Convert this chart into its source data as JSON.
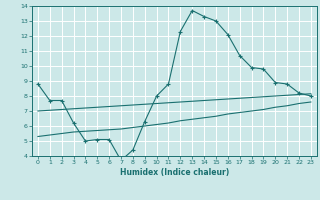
{
  "title": "",
  "xlabel": "Humidex (Indice chaleur)",
  "ylabel": "",
  "bg_color": "#cce8e8",
  "grid_color": "#ffffff",
  "line_color": "#1a7070",
  "xlim": [
    -0.5,
    23.5
  ],
  "ylim": [
    4,
    14
  ],
  "xticks": [
    0,
    1,
    2,
    3,
    4,
    5,
    6,
    7,
    8,
    9,
    10,
    11,
    12,
    13,
    14,
    15,
    16,
    17,
    18,
    19,
    20,
    21,
    22,
    23
  ],
  "yticks": [
    4,
    5,
    6,
    7,
    8,
    9,
    10,
    11,
    12,
    13,
    14
  ],
  "series1_x": [
    0,
    1,
    2,
    3,
    4,
    5,
    6,
    7,
    8,
    9,
    10,
    11,
    12,
    13,
    14,
    15,
    16,
    17,
    18,
    19,
    20,
    21,
    22,
    23
  ],
  "series1_y": [
    8.8,
    7.7,
    7.7,
    6.2,
    5.0,
    5.1,
    5.1,
    3.7,
    4.4,
    6.3,
    8.0,
    8.8,
    12.3,
    13.7,
    13.3,
    13.0,
    12.1,
    10.7,
    9.9,
    9.8,
    8.9,
    8.8,
    8.2,
    8.0
  ],
  "series2_x": [
    0,
    1,
    2,
    3,
    4,
    5,
    6,
    7,
    8,
    9,
    10,
    11,
    12,
    13,
    14,
    15,
    16,
    17,
    18,
    19,
    20,
    21,
    22,
    23
  ],
  "series2_y": [
    7.0,
    7.05,
    7.1,
    7.15,
    7.2,
    7.25,
    7.3,
    7.35,
    7.4,
    7.45,
    7.5,
    7.55,
    7.6,
    7.65,
    7.7,
    7.75,
    7.8,
    7.85,
    7.9,
    7.95,
    8.0,
    8.05,
    8.1,
    8.15
  ],
  "series3_x": [
    0,
    1,
    2,
    3,
    4,
    5,
    6,
    7,
    8,
    9,
    10,
    11,
    12,
    13,
    14,
    15,
    16,
    17,
    18,
    19,
    20,
    21,
    22,
    23
  ],
  "series3_y": [
    5.3,
    5.4,
    5.5,
    5.6,
    5.65,
    5.7,
    5.75,
    5.8,
    5.9,
    6.0,
    6.1,
    6.2,
    6.35,
    6.45,
    6.55,
    6.65,
    6.8,
    6.9,
    7.0,
    7.1,
    7.25,
    7.35,
    7.5,
    7.6
  ]
}
